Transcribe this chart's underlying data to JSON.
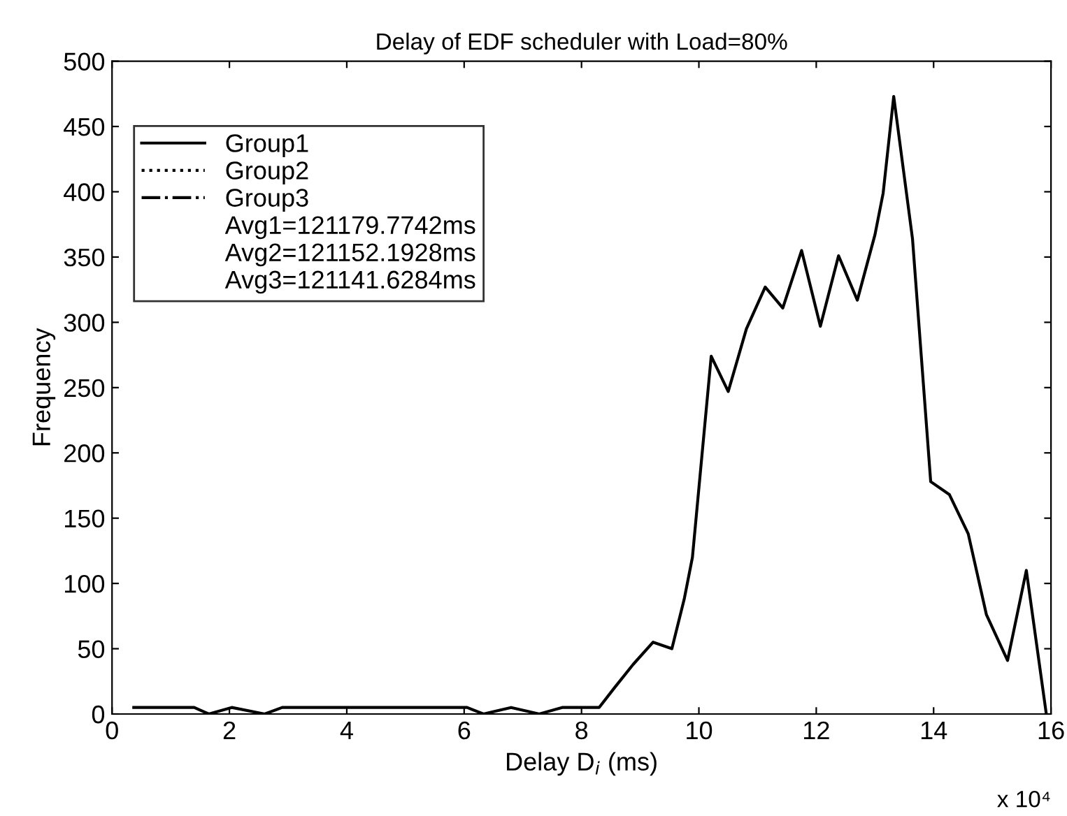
{
  "chart_data": {
    "type": "line",
    "title": "Delay of EDF scheduler with Load=80%",
    "xlabel": "Delay D$_{i}$ (ms)",
    "ylabel": "Frequency",
    "xlim": [
      0,
      16
    ],
    "ylim": [
      0,
      500
    ],
    "xticks": [
      0,
      2,
      4,
      6,
      8,
      10,
      12,
      14,
      16
    ],
    "yticks": [
      0,
      50,
      100,
      150,
      200,
      250,
      300,
      350,
      400,
      450,
      500
    ],
    "grid": false,
    "legend": "top left",
    "marker": "none",
    "annotations": [
      "Avg1=121179.7742ms",
      "Avg2=121152.1928ms",
      "Avg3=121141.6284ms",
      "x 10⁴"
    ],
    "series": [
      {
        "name": "Group1",
        "color": "#000000",
        "line_style": "solid",
        "x": [
          0.37,
          1.4,
          1.65,
          2.04,
          2.6,
          2.9,
          6.05,
          6.33,
          6.8,
          7.28,
          7.67,
          8.3,
          8.56,
          8.88,
          9.22,
          9.54,
          9.75,
          9.89,
          10.21,
          10.5,
          10.81,
          11.13,
          11.43,
          11.75,
          12.07,
          12.38,
          12.7,
          13.0,
          13.14,
          13.32,
          13.64,
          13.95,
          14.27,
          14.59,
          14.9,
          15.26,
          15.58,
          15.92
        ],
        "values": [
          5,
          5,
          0,
          5,
          0,
          5,
          5,
          0,
          5,
          0,
          5,
          5,
          20,
          38,
          55,
          50,
          88,
          120,
          274,
          247,
          295,
          327,
          311,
          355,
          297,
          351,
          317,
          367,
          399,
          473,
          364,
          178,
          168,
          138,
          76,
          41,
          110,
          0
        ]
      },
      {
        "name": "Group2",
        "color": "#000000",
        "line_style": "dotted"
      },
      {
        "name": "Group3",
        "color": "#000000",
        "line_style": "dashdot"
      }
    ]
  }
}
